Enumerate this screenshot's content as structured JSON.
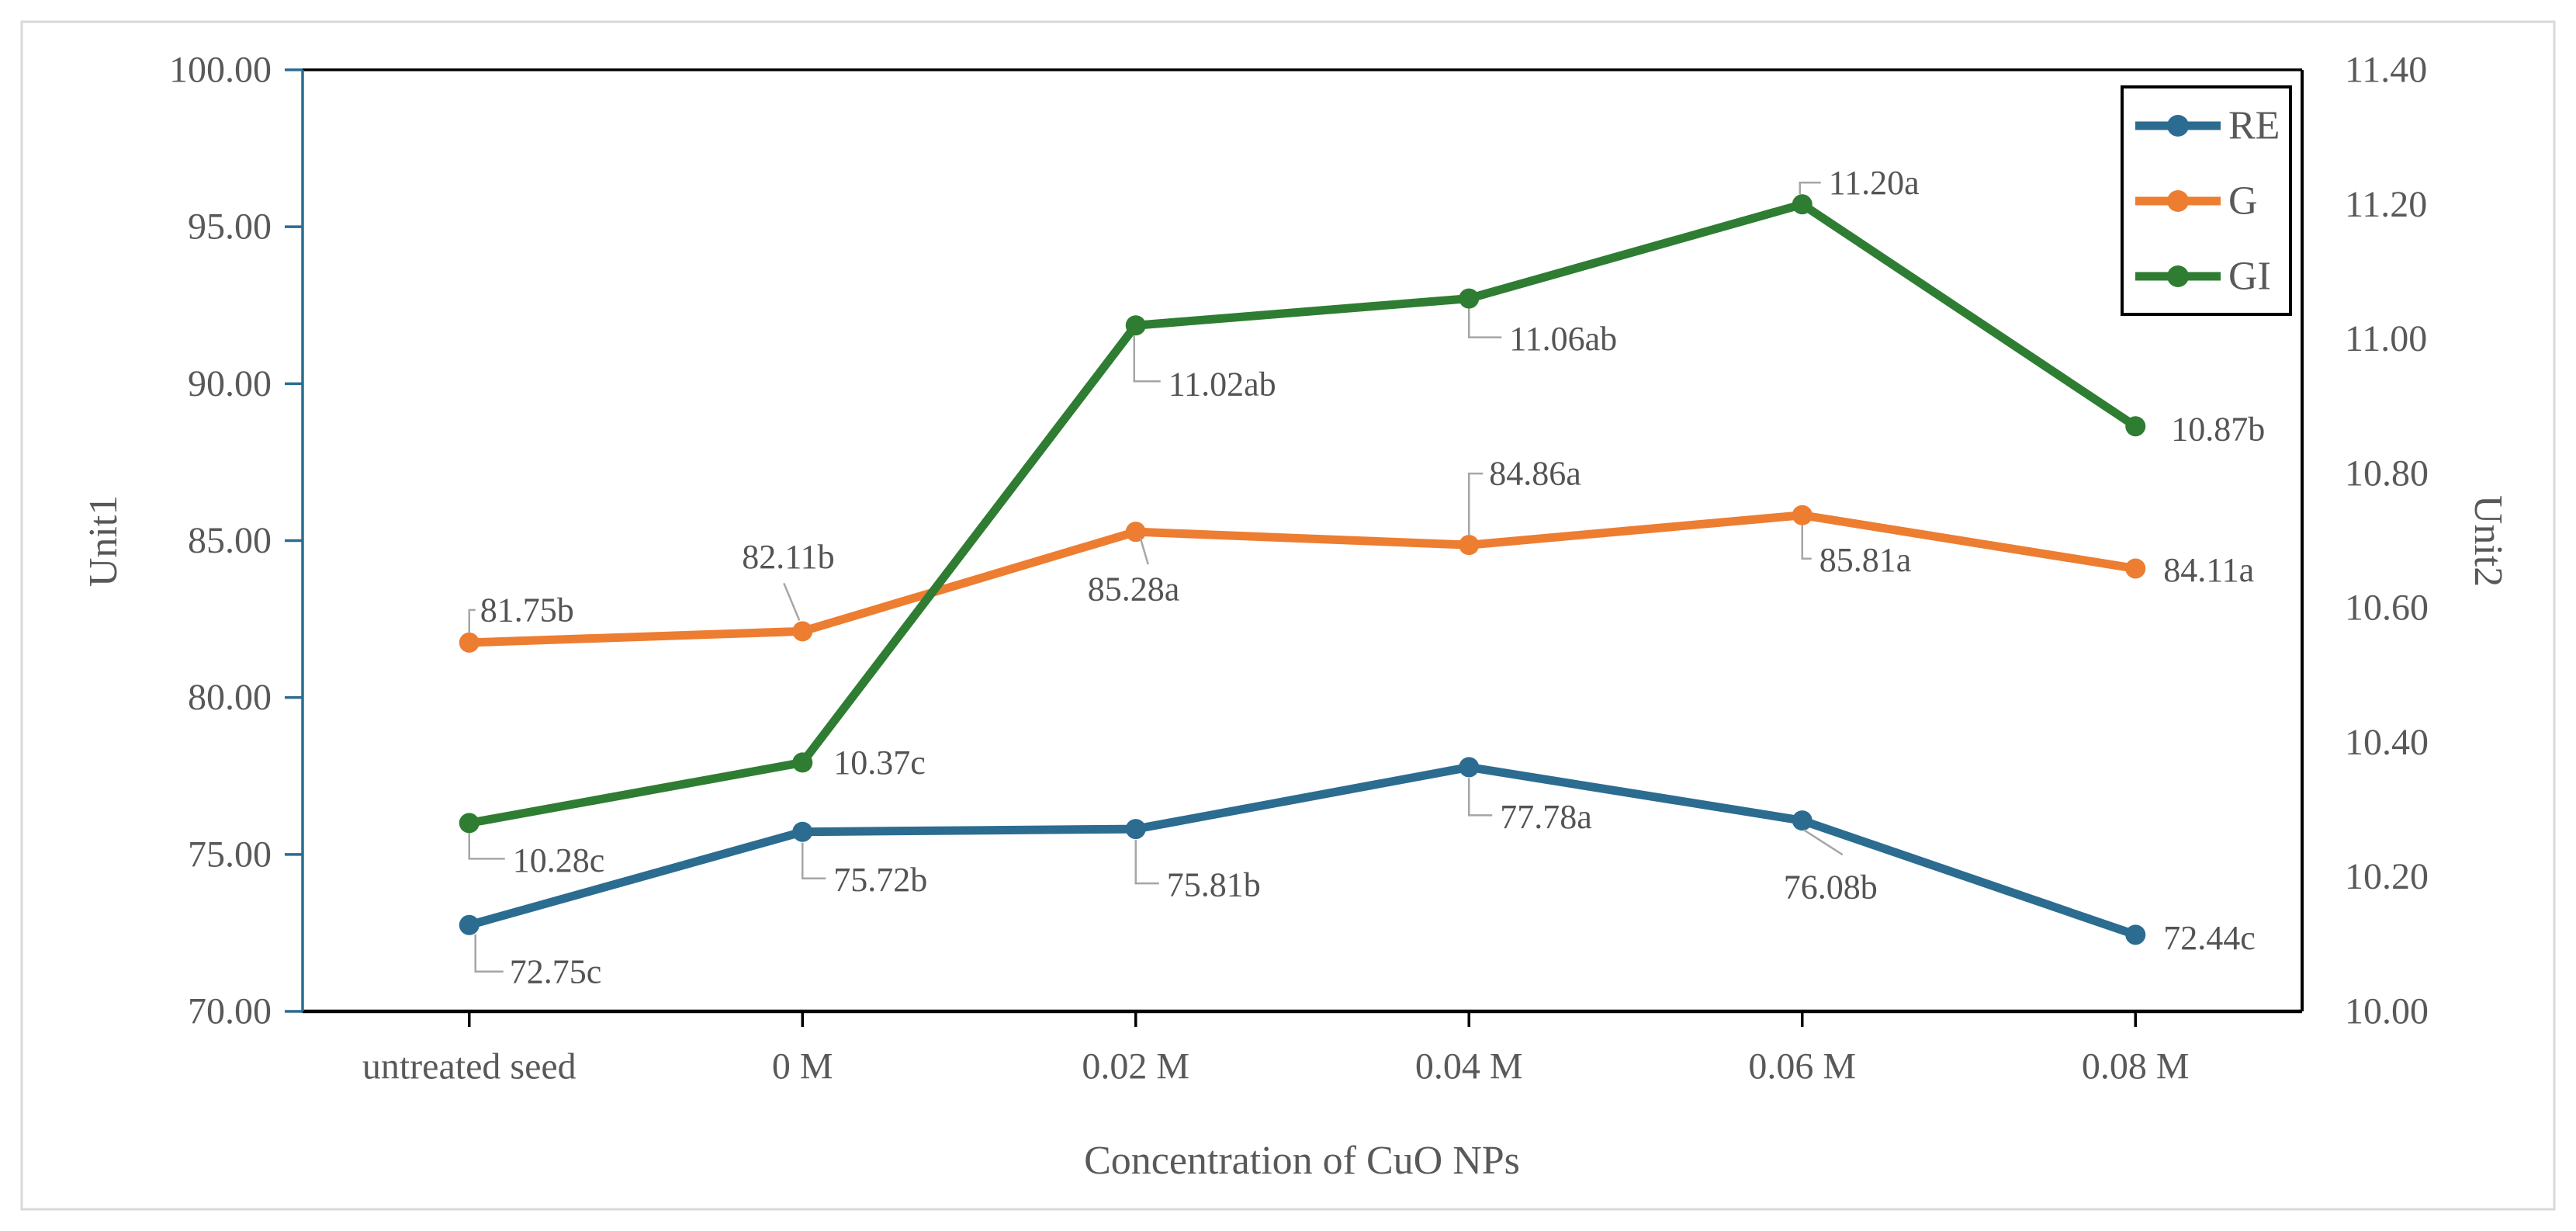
{
  "figure": {
    "background": "#ffffff",
    "border_color": "#d9d9d9",
    "text_color": "#595959",
    "leader_color": "#a6a6a6"
  },
  "chart_data": {
    "type": "line",
    "title": "",
    "categories": [
      "untreated seed",
      "0 M",
      "0.02 M",
      "0.04 M",
      "0.06 M",
      "0.08 M"
    ],
    "x_axis": {
      "title": "Concentration of CuO NPs"
    },
    "left_axis": {
      "title": "Unit1",
      "min": 70,
      "max": 100,
      "tick_step": 5,
      "ticks": [
        "100.00",
        "95.00",
        "90.00",
        "85.00",
        "80.00",
        "75.00",
        "70.00"
      ],
      "axis_color": "#2b6c90"
    },
    "right_axis": {
      "title": "Unit2",
      "min": 10,
      "max": 11.4,
      "tick_step": 0.2,
      "ticks": [
        "11.40",
        "11.20",
        "11.00",
        "10.80",
        "10.60",
        "10.40",
        "10.20",
        "10.00"
      ],
      "axis_color": "#000000"
    },
    "grid": "off",
    "legend": {
      "position": "top-right-inside",
      "entries": [
        "RE",
        "G",
        "GI"
      ]
    },
    "series": [
      {
        "name": "RE",
        "color": "#2b6c90",
        "axis": "left",
        "values": [
          72.75,
          75.72,
          75.81,
          77.78,
          76.08,
          72.44
        ],
        "point_labels": [
          "72.75c",
          "75.72b",
          "75.81b",
          "77.78a",
          "76.08b",
          "72.44c"
        ]
      },
      {
        "name": "G",
        "color": "#ed7d31",
        "axis": "left",
        "values": [
          81.75,
          82.11,
          85.28,
          84.86,
          85.81,
          84.11
        ],
        "point_labels": [
          "81.75b",
          "82.11b",
          "85.28a",
          "84.86a",
          "85.81a",
          "84.11a"
        ]
      },
      {
        "name": "GI",
        "color": "#2e7d32",
        "axis": "right",
        "values": [
          10.28,
          10.37,
          11.02,
          11.06,
          11.2,
          10.87
        ],
        "point_labels": [
          "10.28c",
          "10.37c",
          "11.02ab",
          "11.06ab",
          "11.20a",
          "10.87b"
        ]
      }
    ]
  }
}
